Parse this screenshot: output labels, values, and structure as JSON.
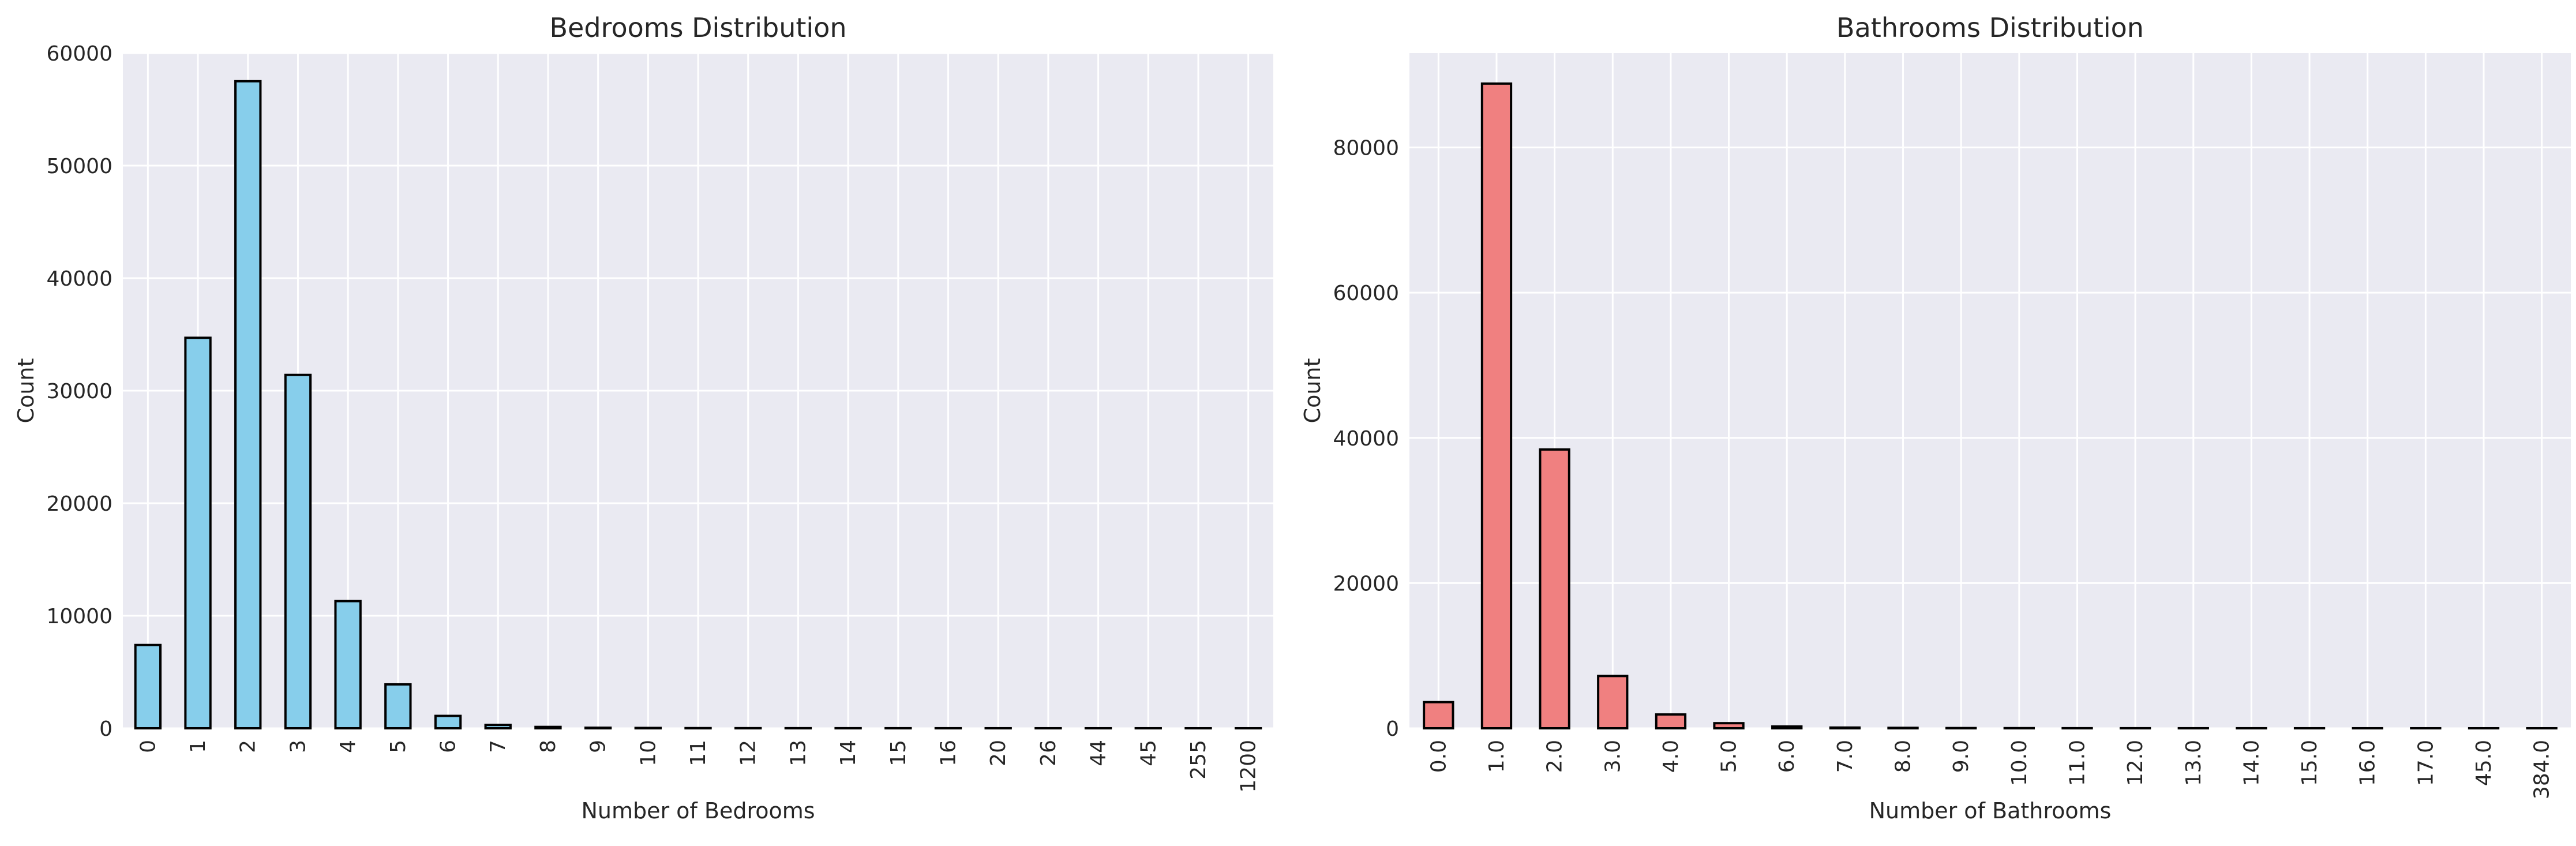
{
  "chart_data": [
    {
      "type": "bar",
      "title": "Bedrooms Distribution",
      "xlabel": "Number of Bedrooms",
      "ylabel": "Count",
      "categories": [
        "0",
        "1",
        "2",
        "3",
        "4",
        "5",
        "6",
        "7",
        "8",
        "9",
        "10",
        "11",
        "12",
        "13",
        "14",
        "15",
        "16",
        "20",
        "26",
        "44",
        "45",
        "255",
        "1200"
      ],
      "values": [
        7400,
        34700,
        57500,
        31400,
        11300,
        3900,
        1100,
        300,
        120,
        50,
        30,
        15,
        10,
        8,
        6,
        5,
        4,
        3,
        2,
        2,
        2,
        1,
        1
      ],
      "ylim": [
        0,
        60000
      ],
      "yticks": [
        0,
        10000,
        20000,
        30000,
        40000,
        50000,
        60000
      ],
      "bar_color": "#87ceeb",
      "grid": true,
      "background": "#eaeaf2"
    },
    {
      "type": "bar",
      "title": "Bathrooms Distribution",
      "xlabel": "Number of Bathrooms",
      "ylabel": "Count",
      "categories": [
        "0.0",
        "1.0",
        "2.0",
        "3.0",
        "4.0",
        "5.0",
        "6.0",
        "7.0",
        "8.0",
        "9.0",
        "10.0",
        "11.0",
        "12.0",
        "13.0",
        "14.0",
        "15.0",
        "16.0",
        "17.0",
        "45.0",
        "384.0"
      ],
      "values": [
        3600,
        88800,
        38400,
        7200,
        1900,
        700,
        250,
        100,
        60,
        30,
        20,
        10,
        8,
        6,
        5,
        4,
        3,
        2,
        1,
        1
      ],
      "ylim": [
        0,
        93000
      ],
      "yticks": [
        0,
        20000,
        40000,
        60000,
        80000
      ],
      "bar_color": "#f08080",
      "grid": true,
      "background": "#eaeaf2"
    }
  ]
}
